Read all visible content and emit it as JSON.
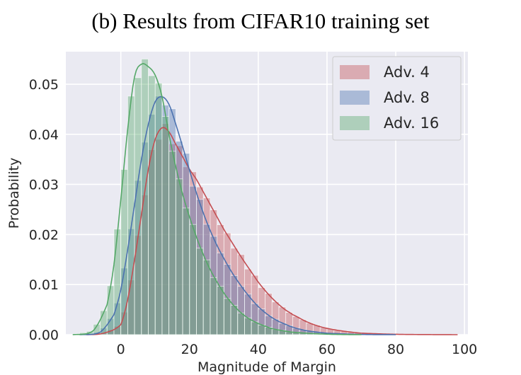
{
  "chart_data": {
    "type": "histogram",
    "title": "(b) Results from CIFAR10 training set",
    "xlabel": "Magnitude of Margin",
    "ylabel": "Probability",
    "xlim": [
      -16,
      101
    ],
    "ylim": [
      0,
      0.0565
    ],
    "x_ticks": [
      0,
      20,
      40,
      60,
      80,
      100
    ],
    "y_ticks": [
      0.0,
      0.01,
      0.02,
      0.03,
      0.04,
      0.05
    ],
    "x_tick_labels": [
      "0",
      "20",
      "40",
      "60",
      "80",
      "100"
    ],
    "y_tick_labels": [
      "0.00",
      "0.01",
      "0.02",
      "0.03",
      "0.04",
      "0.05"
    ],
    "grid": true,
    "legend_position": "top-right",
    "series": [
      {
        "name": "Adv. 4",
        "color": "#c44e52",
        "bin_width": 2,
        "density_curve": [
          [
            -10,
            0.0
          ],
          [
            -5,
            0.0003
          ],
          [
            0,
            0.002
          ],
          [
            2,
            0.007
          ],
          [
            4,
            0.015
          ],
          [
            6,
            0.024
          ],
          [
            8,
            0.033
          ],
          [
            10,
            0.039
          ],
          [
            12,
            0.0413
          ],
          [
            14,
            0.0405
          ],
          [
            16,
            0.038
          ],
          [
            18,
            0.0355
          ],
          [
            20,
            0.033
          ],
          [
            22,
            0.031
          ],
          [
            24,
            0.0285
          ],
          [
            26,
            0.026
          ],
          [
            28,
            0.0235
          ],
          [
            30,
            0.021
          ],
          [
            32,
            0.0188
          ],
          [
            34,
            0.0166
          ],
          [
            36,
            0.0145
          ],
          [
            38,
            0.0125
          ],
          [
            40,
            0.0105
          ],
          [
            42,
            0.0088
          ],
          [
            44,
            0.0073
          ],
          [
            46,
            0.006
          ],
          [
            48,
            0.0049
          ],
          [
            50,
            0.004
          ],
          [
            54,
            0.0026
          ],
          [
            58,
            0.0016
          ],
          [
            62,
            0.001
          ],
          [
            66,
            0.0006
          ],
          [
            70,
            0.0003
          ],
          [
            80,
            8e-05
          ],
          [
            90,
            2e-05
          ],
          [
            98,
            0.0
          ]
        ]
      },
      {
        "name": "Adv. 8",
        "color": "#4c72b0",
        "bin_width": 2,
        "density_curve": [
          [
            -12,
            0.0
          ],
          [
            -6,
            0.0005
          ],
          [
            -2,
            0.004
          ],
          [
            0,
            0.009
          ],
          [
            2,
            0.017
          ],
          [
            4,
            0.026
          ],
          [
            6,
            0.035
          ],
          [
            8,
            0.042
          ],
          [
            10,
            0.0465
          ],
          [
            12,
            0.0475
          ],
          [
            14,
            0.046
          ],
          [
            16,
            0.042
          ],
          [
            18,
            0.0375
          ],
          [
            20,
            0.0328
          ],
          [
            22,
            0.0283
          ],
          [
            24,
            0.0243
          ],
          [
            26,
            0.0208
          ],
          [
            28,
            0.0178
          ],
          [
            30,
            0.0152
          ],
          [
            32,
            0.0128
          ],
          [
            34,
            0.0107
          ],
          [
            36,
            0.0088
          ],
          [
            38,
            0.0071
          ],
          [
            40,
            0.0056
          ],
          [
            42,
            0.0044
          ],
          [
            44,
            0.0034
          ],
          [
            46,
            0.0026
          ],
          [
            50,
            0.0015
          ],
          [
            54,
            0.0008
          ],
          [
            60,
            0.0003
          ],
          [
            70,
            5e-05
          ],
          [
            80,
            0.0
          ]
        ]
      },
      {
        "name": "Adv. 16",
        "color": "#55a868",
        "bin_width": 2,
        "density_curve": [
          [
            -14,
            0.0
          ],
          [
            -8,
            0.0008
          ],
          [
            -4,
            0.006
          ],
          [
            -2,
            0.014
          ],
          [
            0,
            0.027
          ],
          [
            2,
            0.041
          ],
          [
            4,
            0.0515
          ],
          [
            6,
            0.054
          ],
          [
            8,
            0.0535
          ],
          [
            10,
            0.0518
          ],
          [
            12,
            0.0475
          ],
          [
            14,
            0.04
          ],
          [
            16,
            0.0335
          ],
          [
            18,
            0.028
          ],
          [
            20,
            0.0235
          ],
          [
            22,
            0.0195
          ],
          [
            24,
            0.016
          ],
          [
            26,
            0.013
          ],
          [
            28,
            0.0105
          ],
          [
            30,
            0.0083
          ],
          [
            32,
            0.0065
          ],
          [
            34,
            0.005
          ],
          [
            36,
            0.0038
          ],
          [
            38,
            0.0029
          ],
          [
            40,
            0.0022
          ],
          [
            44,
            0.0012
          ],
          [
            50,
            0.0005
          ],
          [
            60,
            0.0001
          ],
          [
            70,
            0.0
          ]
        ]
      }
    ]
  }
}
